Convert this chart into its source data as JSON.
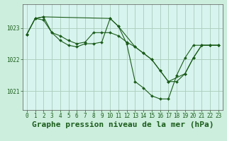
{
  "background_color": "#cceedd",
  "plot_bg_color": "#d8f4ee",
  "grid_color": "#aaccbb",
  "line_color": "#1a5c1a",
  "marker_color": "#1a5c1a",
  "title": "Graphe pression niveau de la mer (hPa)",
  "xlim": [
    -0.5,
    23.5
  ],
  "ylim": [
    1020.4,
    1023.75
  ],
  "yticks": [
    1021,
    1022,
    1023
  ],
  "xticks": [
    0,
    1,
    2,
    3,
    4,
    5,
    6,
    7,
    8,
    9,
    10,
    11,
    12,
    13,
    14,
    15,
    16,
    17,
    18,
    19,
    20,
    21,
    22,
    23
  ],
  "series": [
    {
      "x": [
        0,
        1,
        2,
        3,
        4,
        5,
        6,
        7,
        8,
        9,
        10,
        11,
        12,
        13,
        14,
        15,
        16,
        17,
        18,
        19,
        20,
        21,
        22,
        23
      ],
      "y": [
        1022.8,
        1023.3,
        1023.35,
        1022.85,
        1022.6,
        1022.45,
        1022.4,
        1022.5,
        1022.5,
        1022.55,
        1023.3,
        1023.05,
        1022.5,
        1021.3,
        1021.1,
        1020.85,
        1020.75,
        1020.75,
        1021.5,
        1022.05,
        1022.45,
        1022.45,
        1022.45,
        1022.45
      ]
    },
    {
      "x": [
        0,
        1,
        2,
        3,
        4,
        5,
        6,
        7,
        8,
        9,
        10,
        11,
        12,
        13,
        14,
        15,
        16,
        17,
        18,
        19,
        20,
        21,
        22,
        23
      ],
      "y": [
        1022.8,
        1023.3,
        1023.25,
        1022.85,
        1022.75,
        1022.6,
        1022.5,
        1022.55,
        1022.85,
        1022.85,
        1022.85,
        1022.75,
        1022.55,
        1022.4,
        1022.2,
        1022.0,
        1021.65,
        1021.3,
        1021.3,
        1021.55,
        1022.05,
        1022.45,
        1022.45,
        1022.45
      ]
    },
    {
      "x": [
        0,
        1,
        2,
        10,
        11,
        13,
        14,
        15,
        16,
        17,
        19,
        20,
        21,
        22,
        23
      ],
      "y": [
        1022.8,
        1023.3,
        1023.35,
        1023.3,
        1023.05,
        1022.4,
        1022.2,
        1022.0,
        1021.65,
        1021.3,
        1021.55,
        1022.05,
        1022.45,
        1022.45,
        1022.45
      ]
    }
  ],
  "title_fontsize": 8,
  "tick_fontsize": 5.5,
  "title_fontweight": "bold",
  "title_color": "#1a5c1a",
  "tick_color": "#1a5c1a",
  "linewidth": 0.8,
  "markersize": 2.0
}
